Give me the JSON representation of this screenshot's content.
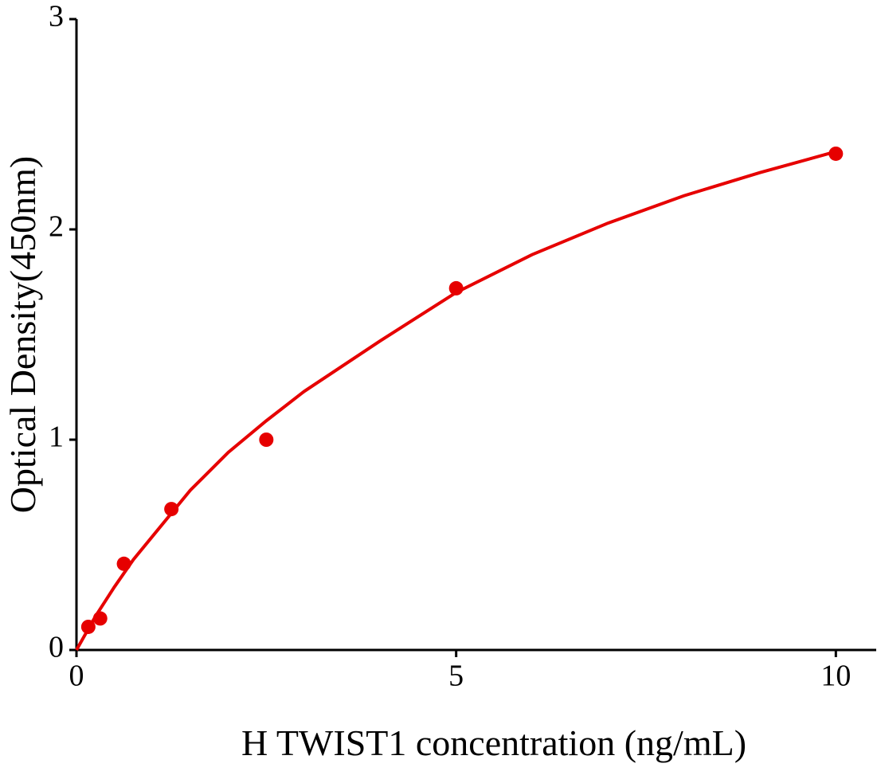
{
  "chart_data": {
    "type": "scatter",
    "x_label": "H TWIST1 concentration (ng/mL)",
    "y_label": "Optical Density(450nm)",
    "color": "#e60000",
    "points": {
      "x": [
        0.156,
        0.312,
        0.625,
        1.25,
        2.5,
        5,
        10
      ],
      "y": [
        0.11,
        0.15,
        0.41,
        0.67,
        1.0,
        1.72,
        2.36
      ]
    },
    "curve": {
      "x": [
        0,
        0.25,
        0.5,
        0.75,
        1,
        1.5,
        2,
        2.5,
        3,
        4,
        5,
        6,
        7,
        8,
        9,
        10
      ],
      "y": [
        0,
        0.16,
        0.3,
        0.43,
        0.54,
        0.76,
        0.94,
        1.09,
        1.23,
        1.47,
        1.7,
        1.88,
        2.03,
        2.16,
        2.27,
        2.37
      ]
    },
    "xlim": [
      0,
      10.5
    ],
    "xticks": [
      0,
      5,
      10
    ],
    "ylim": [
      0,
      3
    ],
    "yticks": [
      0,
      1,
      2,
      3
    ]
  }
}
